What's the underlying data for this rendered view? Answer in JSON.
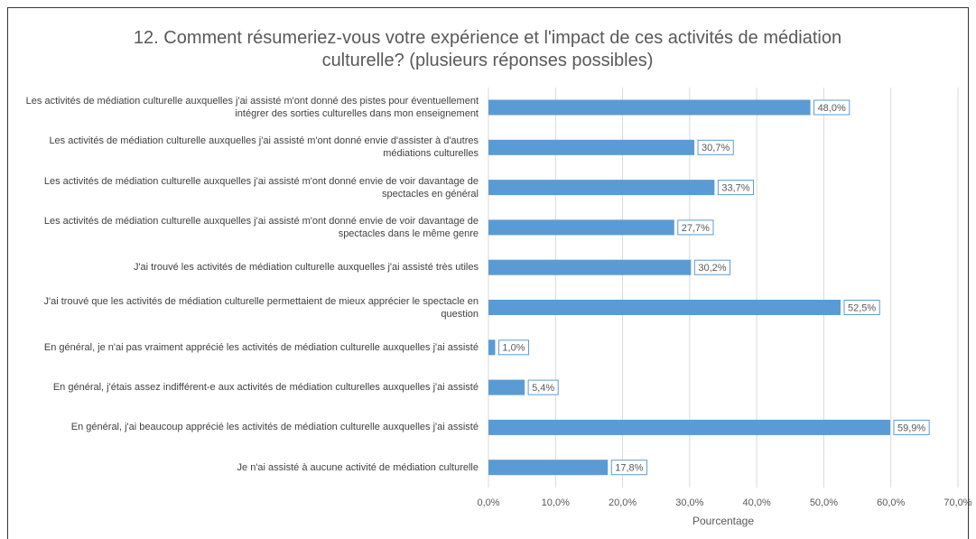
{
  "chart_data": {
    "type": "barh",
    "title": "12. Comment résumeriez-vous votre expérience et l'impact de ces activités de médiation culturelle? (plusieurs réponses possibles)",
    "xlabel": "Pourcentage",
    "categories": [
      "Les activités de médiation culturelle auxquelles j'ai assisté m'ont donné des pistes pour éventuellement intégrer des sorties culturelles dans mon enseignement",
      "Les activités de médiation culturelle auxquelles j'ai assisté m'ont donné envie d'assister à d'autres médiations culturelles",
      "Les activités de médiation culturelle auxquelles j'ai assisté m'ont donné envie de voir davantage de spectacles en général",
      "Les activités de médiation culturelle auxquelles j'ai assisté m'ont donné envie de voir davantage de spectacles dans le même genre",
      "J'ai trouvé les activités de médiation culturelle auxquelles j'ai assisté très utiles",
      "J'ai trouvé que les activités de médiation culturelle permettaient de mieux apprécier le spectacle en question",
      "En général, je n'ai pas vraiment apprécié les activités de médiation culturelle auxquelles j'ai assisté",
      "En général, j'étais assez indifférent-e aux activités de médiation culturelles auxquelles j'ai assisté",
      "En général, j'ai beaucoup apprécié les activités de médiation culturelle auxquelles j'ai assisté",
      "Je n'ai assisté à aucune activité de médiation culturelle"
    ],
    "values": [
      48.0,
      30.7,
      33.7,
      27.7,
      30.2,
      52.5,
      1.0,
      5.4,
      59.9,
      17.8
    ],
    "value_labels": [
      "48,0%",
      "30,7%",
      "33,7%",
      "27,7%",
      "30,2%",
      "52,5%",
      "1,0%",
      "5,4%",
      "59,9%",
      "17,8%"
    ],
    "color": "#5b9bd5",
    "xlim": [
      0,
      70
    ],
    "xticks": [
      {
        "value": 0,
        "label": "0,0%"
      },
      {
        "value": 10,
        "label": "10,0%"
      },
      {
        "value": 20,
        "label": "20,0%"
      },
      {
        "value": 30,
        "label": "30,0%"
      },
      {
        "value": 40,
        "label": "40,0%"
      },
      {
        "value": 50,
        "label": "50,0%"
      },
      {
        "value": 60,
        "label": "60,0%"
      },
      {
        "value": 70,
        "label": "70,0%"
      }
    ],
    "grid": true
  }
}
